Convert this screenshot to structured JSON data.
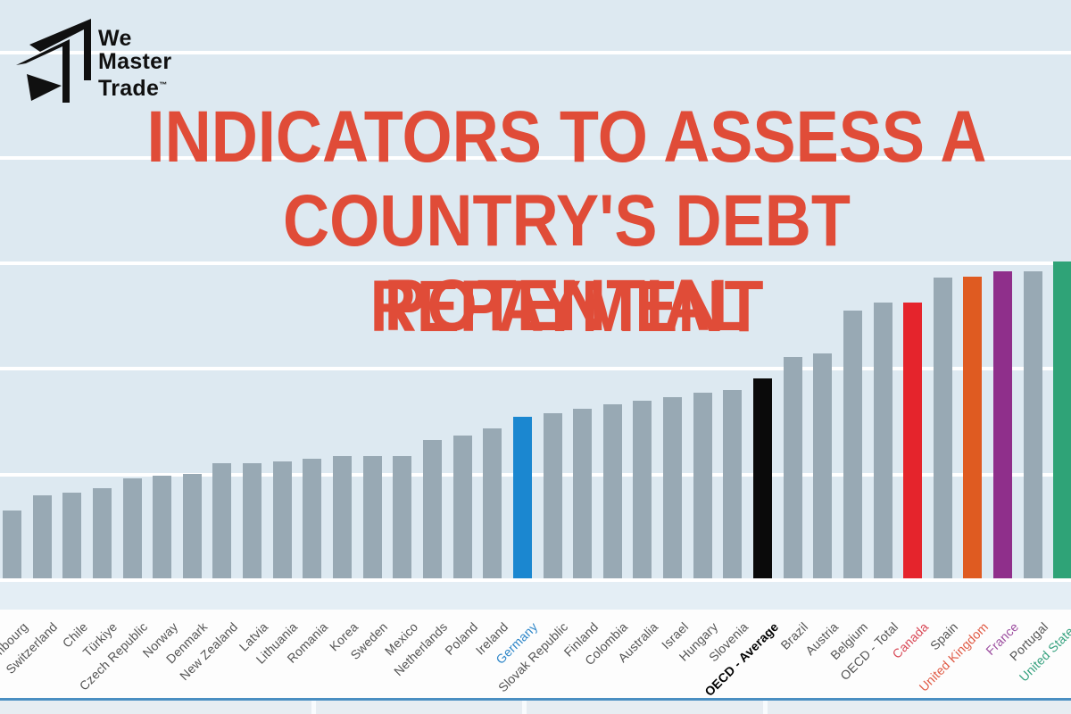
{
  "logo": {
    "line1": "We",
    "line2": "Master",
    "line3": "Trade",
    "trademark": "™",
    "color": "#101010"
  },
  "title": {
    "line1": "INDICATORS TO ASSESS A",
    "line2": "COUNTRY'S DEBT REPAYMENT",
    "line3": "POTENTIAL",
    "color": "#e04c38"
  },
  "colors": {
    "background": "#dde9f1",
    "gridline": "#ffffff",
    "label_band": "#fdfdfd",
    "footer_divider": "#4a8fc2",
    "footer_strip": "#e7edf2"
  },
  "chart_data": {
    "type": "bar",
    "title": "",
    "xlabel": "",
    "ylabel": "",
    "grid": true,
    "legend": "none",
    "ylim": [
      0,
      252
    ],
    "gridline_step": 50,
    "categories": [
      "Luxembourg",
      "Switzerland",
      "Chile",
      "Türkiye",
      "Czech Republic",
      "Norway",
      "Denmark",
      "New Zealand",
      "Latvia",
      "Lithuania",
      "Romania",
      "Korea",
      "Sweden",
      "Mexico",
      "Netherlands",
      "Poland",
      "Ireland",
      "Germany",
      "Slovak Republic",
      "Finland",
      "Colombia",
      "Australia",
      "Israel",
      "Hungary",
      "Slovenia",
      "OECD - Average",
      "Brazil",
      "Austria",
      "Belgium",
      "OECD - Total",
      "Canada",
      "Spain",
      "United Kingdom",
      "France",
      "Portugal",
      "United States"
    ],
    "values": [
      32,
      39.5,
      40.5,
      42.5,
      47.5,
      48.5,
      49.5,
      54.5,
      54.5,
      55.5,
      56.5,
      58,
      58,
      58,
      65.5,
      67.5,
      71,
      76.5,
      78,
      80.5,
      82.5,
      84,
      86,
      88,
      89,
      94.5,
      105,
      106.5,
      127,
      130.5,
      130.5,
      142.5,
      143,
      145.5,
      145.5,
      150
    ],
    "bar_default_color": "#98a9b4",
    "bar_colors": {
      "Germany": "#1b87d0",
      "OECD - Average": "#0a0a0a",
      "Canada": "#e5242c",
      "United Kingdom": "#df5b21",
      "France": "#8f2f8b",
      "United States": "#2fa377"
    },
    "label_default_color": "#545454",
    "label_colors": {
      "Germany": "#2e86c8",
      "OECD - Average": "#000000",
      "Canada": "#d84856",
      "United Kingdom": "#e05a44",
      "France": "#9d4fa0",
      "United States": "#35a17e"
    },
    "bold_labels": [
      "OECD - Average"
    ]
  }
}
